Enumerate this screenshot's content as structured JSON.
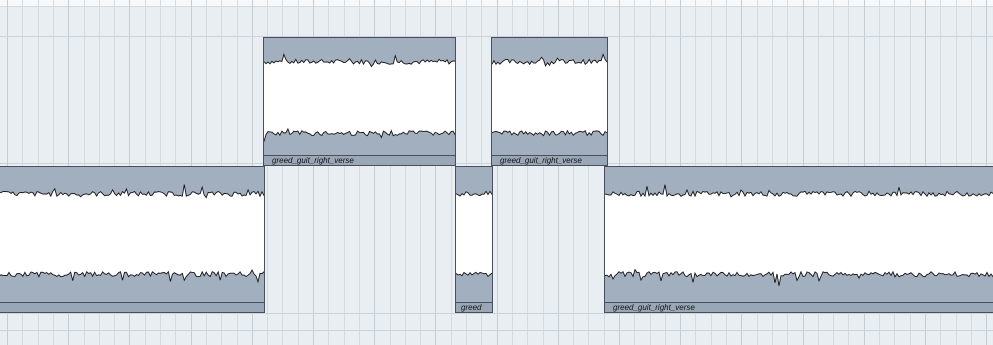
{
  "arranger": {
    "clips": [
      {
        "name": "greed_guit_right_verse"
      },
      {
        "name": "greed_guit_right_verse"
      },
      {
        "name": ""
      },
      {
        "name": "greed"
      },
      {
        "name": "greed_guit_right_verse"
      }
    ]
  },
  "colors": {
    "background": "#e9eef3",
    "grid_line": "#d3dae0",
    "clip_fill": "#a2afbf",
    "clip_border": "#48505a",
    "waveform_fill": "#ffffff",
    "waveform_outline": "#141414"
  }
}
